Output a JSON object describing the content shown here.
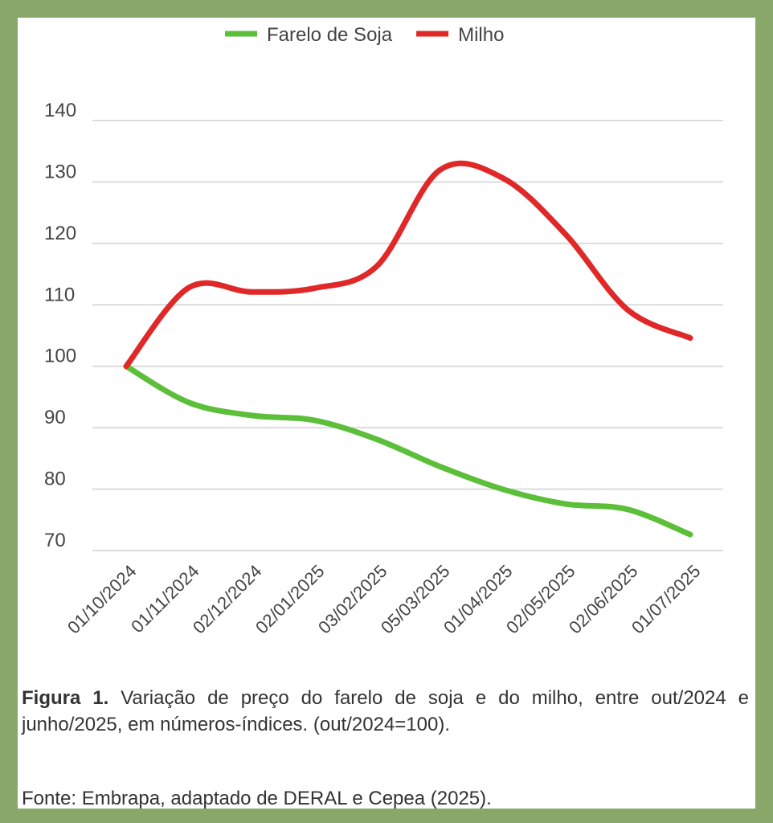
{
  "chart_data": {
    "type": "line",
    "title": "",
    "xlabel": "",
    "ylabel": "",
    "ylim": [
      70,
      140
    ],
    "yticks": [
      70,
      80,
      90,
      100,
      110,
      120,
      130,
      140
    ],
    "grid": true,
    "legend_position": "top-center",
    "categories": [
      "01/10/2024",
      "01/11/2024",
      "02/12/2024",
      "02/01/2025",
      "03/02/2025",
      "05/03/2025",
      "01/04/2025",
      "02/05/2025",
      "02/06/2025",
      "01/07/2025"
    ],
    "series": [
      {
        "name": "Farelo de Soja",
        "color": "#5cbf3a",
        "values": [
          100,
          94.1,
          92.0,
          91.2,
          88.1,
          83.7,
          80.0,
          77.6,
          76.7,
          72.6
        ]
      },
      {
        "name": "Milho",
        "color": "#e02828",
        "values": [
          100,
          112.8,
          112.1,
          112.7,
          116.3,
          131.9,
          130.7,
          121.6,
          109.2,
          104.6
        ]
      }
    ]
  },
  "caption": {
    "label": "Figura 1.",
    "text": " Variação de preço do farelo de soja e do milho, entre out/2024 e junho/2025, em números-índices. (out/2024=100)."
  },
  "source": "Fonte: Embrapa, adaptado de DERAL  e Cepea (2025)."
}
